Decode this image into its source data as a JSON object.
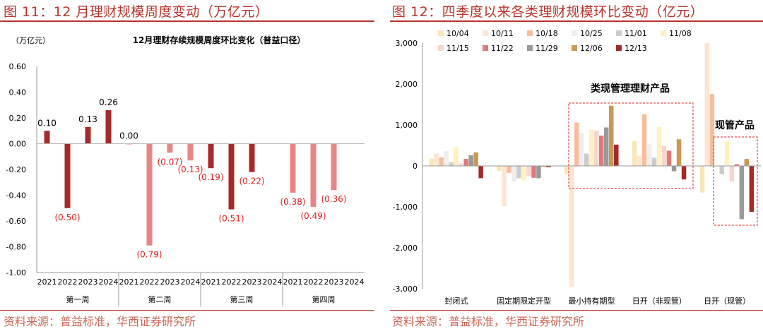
{
  "left": {
    "title": "图 11：12 月理财规模周度变动（万亿元）",
    "source": "资料来源：普益标准，华西证券研究所",
    "chart_data": {
      "type": "bar",
      "title": "12月理财存续规模周度环比变化（普益口径）",
      "unit_label": "（万亿元）",
      "groups": [
        "第一周",
        "第二周",
        "第三周",
        "第四周"
      ],
      "years": [
        "2021",
        "2022",
        "2023",
        "2024"
      ],
      "values": [
        [
          0.1,
          -0.5,
          0.13,
          0.26
        ],
        [
          0.0,
          -0.79,
          -0.07,
          -0.13
        ],
        [
          -0.19,
          -0.51,
          -0.22,
          null
        ],
        [
          -0.38,
          -0.49,
          -0.36,
          null
        ]
      ],
      "labels": [
        [
          "0.10",
          "(0.50)",
          "0.13",
          "0.26"
        ],
        [
          "0.00",
          "(0.79)",
          "(0.07)",
          "(0.13)"
        ],
        [
          "(0.19)",
          "(0.51)",
          "(0.22)",
          ""
        ],
        [
          "(0.38)",
          "(0.49)",
          "(0.36)",
          ""
        ]
      ],
      "ylim": [
        -1.0,
        0.6
      ],
      "yticks": [
        "0.60",
        "0.40",
        "0.20",
        "0.00",
        "-0.20",
        "-0.40",
        "-0.60",
        "-0.80",
        "-1.00"
      ],
      "colors": {
        "dark": "#a52a2a",
        "light": "#e88585",
        "neg_label": "#e02020"
      }
    }
  },
  "right": {
    "title": "图 12：四季度以来各类理财规模环比变动（亿元）",
    "source": "资料来源：普益标准，华西证券研究所",
    "chart_data": {
      "type": "bar",
      "categories": [
        "封闭式",
        "固定期限定开型",
        "最小持有期型",
        "日开（非现管）",
        "日开（现管）"
      ],
      "series": [
        {
          "name": "10/04",
          "color": "#fbe6b8",
          "values": [
            180,
            -120,
            -200,
            610,
            -650
          ]
        },
        {
          "name": "10/11",
          "color": "#fde5d2",
          "values": [
            300,
            -980,
            -2950,
            250,
            3000
          ]
        },
        {
          "name": "10/18",
          "color": "#f6bd9c",
          "values": [
            210,
            -170,
            1060,
            1260,
            1750
          ]
        },
        {
          "name": "10/25",
          "color": "#eeeeee",
          "values": [
            360,
            -380,
            800,
            530,
            -10
          ]
        },
        {
          "name": "11/01",
          "color": "#cccccc",
          "values": [
            90,
            -300,
            300,
            200,
            -200
          ]
        },
        {
          "name": "11/08",
          "color": "#fff2c0",
          "values": [
            460,
            -360,
            890,
            950,
            600
          ]
        },
        {
          "name": "11/15",
          "color": "#f7d6cf",
          "values": [
            60,
            -240,
            860,
            490,
            -380
          ]
        },
        {
          "name": "11/22",
          "color": "#e07a7a",
          "values": [
            170,
            -290,
            740,
            370,
            40
          ]
        },
        {
          "name": "11/29",
          "color": "#999999",
          "values": [
            260,
            -300,
            940,
            -130,
            -1300
          ]
        },
        {
          "name": "12/06",
          "color": "#c89a55",
          "values": [
            330,
            -20,
            1470,
            650,
            170
          ]
        },
        {
          "name": "12/13",
          "color": "#a52a2a",
          "values": [
            -300,
            -30,
            520,
            -330,
            -1120
          ]
        }
      ],
      "ylim": [
        -3000,
        3000
      ],
      "yticks": [
        "3,000",
        "2,000",
        "1,000",
        "0",
        "-1,000",
        "-2,000",
        "-3,000"
      ],
      "annotations": {
        "box1": "类现管理理财产品",
        "box2": "现管产品"
      }
    }
  }
}
